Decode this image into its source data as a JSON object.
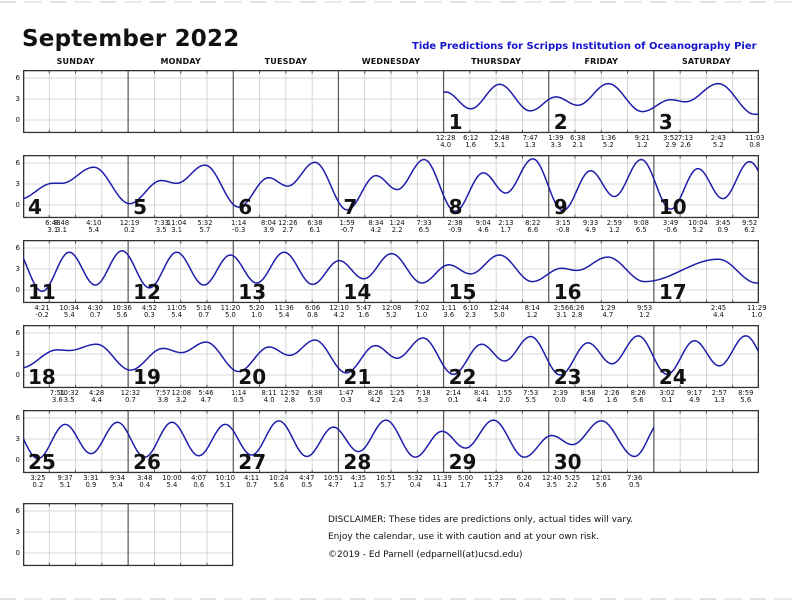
{
  "page": {
    "title": "September 2022",
    "subtitle": "Tide Predictions for Scripps Institution of Oceanography Pier"
  },
  "calendar": {
    "weekday_headers": [
      "SUNDAY",
      "MONDAY",
      "TUESDAY",
      "WEDNESDAY",
      "THURSDAY",
      "FRIDAY",
      "SATURDAY"
    ],
    "y_tick_labels": [
      "6",
      "3",
      "0"
    ],
    "weeks": [
      {
        "first_day": 1,
        "start_col": 4,
        "num_days": 3
      },
      {
        "first_day": 4,
        "start_col": 0,
        "num_days": 7
      },
      {
        "first_day": 11,
        "start_col": 0,
        "num_days": 7
      },
      {
        "first_day": 18,
        "start_col": 0,
        "num_days": 7
      },
      {
        "first_day": 25,
        "start_col": 0,
        "num_days": 6
      }
    ],
    "extra_empty_cells": 2
  },
  "footer": {
    "disclaimer": "DISCLAIMER: These tides are predictions only, actual tides will vary.",
    "enjoy": "Enjoy the calendar, use it with caution and at your own risk.",
    "copyright": "©2019 - Ed Parnell (edparnell(at)ucsd.edu)"
  },
  "colors": {
    "curve": "#1d1daa",
    "subtitle": "#1414cc",
    "grid": "#cccccc",
    "day_divider": "#555555",
    "frame": "#333333"
  },
  "chart_data": {
    "type": "line",
    "title": "September 2022 tide predictions",
    "yticks": [
      6,
      3,
      0
    ],
    "ylim": [
      -1.86,
      7.14
    ],
    "grid": true,
    "note": "each day cell spans 24h with 6h gridlines; m = minute_of_day of labeled tide extreme; h = height",
    "days": [
      {
        "day": 1,
        "extremes": [
          {
            "t": "12:28",
            "m": 28,
            "h": 4.0
          },
          {
            "t": "6:12",
            "m": 372,
            "h": 1.6
          },
          {
            "t": "12:48",
            "m": 768,
            "h": 5.1
          },
          {
            "t": "7:47",
            "m": 1187,
            "h": 1.3
          }
        ]
      },
      {
        "day": 2,
        "extremes": [
          {
            "t": "1:39",
            "m": 99,
            "h": 3.3
          },
          {
            "t": "6:38",
            "m": 398,
            "h": 2.1
          },
          {
            "t": "1:36",
            "m": 816,
            "h": 5.2
          },
          {
            "t": "9:21",
            "m": 1281,
            "h": 1.2
          }
        ]
      },
      {
        "day": 3,
        "extremes": [
          {
            "t": "3:52",
            "m": 232,
            "h": 2.9
          },
          {
            "t": "7:13",
            "m": 433,
            "h": 2.6
          },
          {
            "t": "2:43",
            "m": 883,
            "h": 5.2
          },
          {
            "t": "11:03",
            "m": 1383,
            "h": 0.8
          }
        ]
      },
      {
        "day": 4,
        "extremes": [
          {
            "t": "6:48",
            "m": 408,
            "h": 3.1
          },
          {
            "t": "8:48",
            "m": 528,
            "h": 3.1
          },
          {
            "t": "4:10",
            "m": 970,
            "h": 5.4
          }
        ]
      },
      {
        "day": 5,
        "extremes": [
          {
            "t": "12:19",
            "m": 19,
            "h": 0.2
          },
          {
            "t": "7:33",
            "m": 453,
            "h": 3.5
          },
          {
            "t": "11:04",
            "m": 664,
            "h": 3.1
          },
          {
            "t": "5:32",
            "m": 1052,
            "h": 5.7
          }
        ]
      },
      {
        "day": 6,
        "extremes": [
          {
            "t": "1:14",
            "m": 74,
            "h": -0.3
          },
          {
            "t": "8:04",
            "m": 484,
            "h": 3.9
          },
          {
            "t": "12:26",
            "m": 746,
            "h": 2.7
          },
          {
            "t": "6:38",
            "m": 1118,
            "h": 6.1
          }
        ]
      },
      {
        "day": 7,
        "extremes": [
          {
            "t": "1:59",
            "m": 119,
            "h": -0.7
          },
          {
            "t": "8:34",
            "m": 514,
            "h": 4.2
          },
          {
            "t": "1:24",
            "m": 804,
            "h": 2.2
          },
          {
            "t": "7:33",
            "m": 1173,
            "h": 6.5
          }
        ]
      },
      {
        "day": 8,
        "extremes": [
          {
            "t": "2:38",
            "m": 158,
            "h": -0.9
          },
          {
            "t": "9:04",
            "m": 544,
            "h": 4.6
          },
          {
            "t": "2:13",
            "m": 853,
            "h": 1.7
          },
          {
            "t": "8:22",
            "m": 1222,
            "h": 6.6
          }
        ]
      },
      {
        "day": 9,
        "extremes": [
          {
            "t": "3:15",
            "m": 195,
            "h": -0.8
          },
          {
            "t": "9:33",
            "m": 573,
            "h": 4.9
          },
          {
            "t": "2:59",
            "m": 899,
            "h": 1.2
          },
          {
            "t": "9:08",
            "m": 1268,
            "h": 6.5
          }
        ]
      },
      {
        "day": 10,
        "extremes": [
          {
            "t": "3:49",
            "m": 229,
            "h": -0.6
          },
          {
            "t": "10:04",
            "m": 604,
            "h": 5.2
          },
          {
            "t": "3:45",
            "m": 945,
            "h": 0.9
          },
          {
            "t": "9:52",
            "m": 1312,
            "h": 6.2
          }
        ]
      },
      {
        "day": 11,
        "extremes": [
          {
            "t": "4:21",
            "m": 261,
            "h": -0.2
          },
          {
            "t": "10:34",
            "m": 634,
            "h": 5.4
          },
          {
            "t": "4:30",
            "m": 990,
            "h": 0.7
          },
          {
            "t": "10:36",
            "m": 1356,
            "h": 5.6
          }
        ]
      },
      {
        "day": 12,
        "extremes": [
          {
            "t": "4:52",
            "m": 292,
            "h": 0.3
          },
          {
            "t": "11:05",
            "m": 665,
            "h": 5.4
          },
          {
            "t": "5:16",
            "m": 1036,
            "h": 0.7
          },
          {
            "t": "11:20",
            "m": 1400,
            "h": 5.0
          }
        ]
      },
      {
        "day": 13,
        "extremes": [
          {
            "t": "5:20",
            "m": 320,
            "h": 1.0
          },
          {
            "t": "11:36",
            "m": 696,
            "h": 5.4
          },
          {
            "t": "6:06",
            "m": 1086,
            "h": 0.8
          }
        ]
      },
      {
        "day": 14,
        "extremes": [
          {
            "t": "12:10",
            "m": 10,
            "h": 4.2
          },
          {
            "t": "5:47",
            "m": 347,
            "h": 1.6
          },
          {
            "t": "12:08",
            "m": 728,
            "h": 5.2
          },
          {
            "t": "7:02",
            "m": 1142,
            "h": 1.0
          }
        ]
      },
      {
        "day": 15,
        "extremes": [
          {
            "t": "1:11",
            "m": 71,
            "h": 3.6
          },
          {
            "t": "6:10",
            "m": 370,
            "h": 2.3
          },
          {
            "t": "12:44",
            "m": 764,
            "h": 5.0
          },
          {
            "t": "8:14",
            "m": 1214,
            "h": 1.2
          }
        ]
      },
      {
        "day": 16,
        "extremes": [
          {
            "t": "2:56",
            "m": 176,
            "h": 3.1
          },
          {
            "t": "6:26",
            "m": 386,
            "h": 2.8
          },
          {
            "t": "1:29",
            "m": 809,
            "h": 4.7
          },
          {
            "t": "9:53",
            "m": 1313,
            "h": 1.2
          }
        ]
      },
      {
        "day": 17,
        "extremes": [
          {
            "t": "2:45",
            "m": 885,
            "h": 4.4
          },
          {
            "t": "11:29",
            "m": 1409,
            "h": 1.0
          }
        ]
      },
      {
        "day": 18,
        "extremes": [
          {
            "t": "7:51",
            "m": 471,
            "h": 3.6
          },
          {
            "t": "10:32",
            "m": 632,
            "h": 3.5
          },
          {
            "t": "4:28",
            "m": 1008,
            "h": 4.4
          }
        ]
      },
      {
        "day": 19,
        "extremes": [
          {
            "t": "12:32",
            "m": 32,
            "h": 0.7
          },
          {
            "t": "7:57",
            "m": 477,
            "h": 3.8
          },
          {
            "t": "12:08",
            "m": 728,
            "h": 3.2
          },
          {
            "t": "5:46",
            "m": 1066,
            "h": 4.7
          }
        ]
      },
      {
        "day": 20,
        "extremes": [
          {
            "t": "1:14",
            "m": 74,
            "h": 0.5
          },
          {
            "t": "8:11",
            "m": 491,
            "h": 4.0
          },
          {
            "t": "12:52",
            "m": 772,
            "h": 2.8
          },
          {
            "t": "6:38",
            "m": 1118,
            "h": 5.0
          }
        ]
      },
      {
        "day": 21,
        "extremes": [
          {
            "t": "1:47",
            "m": 107,
            "h": 0.3
          },
          {
            "t": "8:26",
            "m": 506,
            "h": 4.2
          },
          {
            "t": "1:25",
            "m": 805,
            "h": 2.4
          },
          {
            "t": "7:18",
            "m": 1158,
            "h": 5.3
          }
        ]
      },
      {
        "day": 22,
        "extremes": [
          {
            "t": "2:14",
            "m": 134,
            "h": 0.1
          },
          {
            "t": "8:41",
            "m": 521,
            "h": 4.4
          },
          {
            "t": "1:55",
            "m": 835,
            "h": 2.0
          },
          {
            "t": "7:53",
            "m": 1193,
            "h": 5.5
          }
        ]
      },
      {
        "day": 23,
        "extremes": [
          {
            "t": "2:39",
            "m": 159,
            "h": 0.0
          },
          {
            "t": "8:58",
            "m": 538,
            "h": 4.6
          },
          {
            "t": "2:26",
            "m": 866,
            "h": 1.6
          },
          {
            "t": "8:26",
            "m": 1226,
            "h": 5.6
          }
        ]
      },
      {
        "day": 24,
        "extremes": [
          {
            "t": "3:02",
            "m": 182,
            "h": 0.1
          },
          {
            "t": "9:17",
            "m": 557,
            "h": 4.9
          },
          {
            "t": "2:57",
            "m": 897,
            "h": 1.3
          },
          {
            "t": "8:59",
            "m": 1259,
            "h": 5.6
          }
        ]
      },
      {
        "day": 25,
        "extremes": [
          {
            "t": "3:25",
            "m": 205,
            "h": 0.2
          },
          {
            "t": "9:37",
            "m": 577,
            "h": 5.1
          },
          {
            "t": "3:31",
            "m": 931,
            "h": 0.9
          },
          {
            "t": "9:34",
            "m": 1294,
            "h": 5.4
          }
        ]
      },
      {
        "day": 26,
        "extremes": [
          {
            "t": "3:48",
            "m": 228,
            "h": 0.4
          },
          {
            "t": "10:00",
            "m": 600,
            "h": 5.4
          },
          {
            "t": "4:07",
            "m": 967,
            "h": 0.6
          },
          {
            "t": "10:10",
            "m": 1330,
            "h": 5.1
          }
        ]
      },
      {
        "day": 27,
        "extremes": [
          {
            "t": "4:11",
            "m": 251,
            "h": 0.7
          },
          {
            "t": "10:24",
            "m": 624,
            "h": 5.6
          },
          {
            "t": "4:47",
            "m": 1007,
            "h": 0.5
          },
          {
            "t": "10:51",
            "m": 1371,
            "h": 4.7
          }
        ]
      },
      {
        "day": 28,
        "extremes": [
          {
            "t": "4:35",
            "m": 275,
            "h": 1.2
          },
          {
            "t": "10:51",
            "m": 651,
            "h": 5.7
          },
          {
            "t": "5:32",
            "m": 1052,
            "h": 0.4
          },
          {
            "t": "11:39",
            "m": 1419,
            "h": 4.1
          }
        ]
      },
      {
        "day": 29,
        "extremes": [
          {
            "t": "5:00",
            "m": 300,
            "h": 1.7
          },
          {
            "t": "11:23",
            "m": 683,
            "h": 5.7
          },
          {
            "t": "6:26",
            "m": 1106,
            "h": 0.4
          }
        ]
      },
      {
        "day": 30,
        "extremes": [
          {
            "t": "12:40",
            "m": 40,
            "h": 3.5
          },
          {
            "t": "5:25",
            "m": 325,
            "h": 2.2
          },
          {
            "t": "12:01",
            "m": 721,
            "h": 5.6
          },
          {
            "t": "7:36",
            "m": 1176,
            "h": 0.5
          }
        ]
      }
    ]
  }
}
